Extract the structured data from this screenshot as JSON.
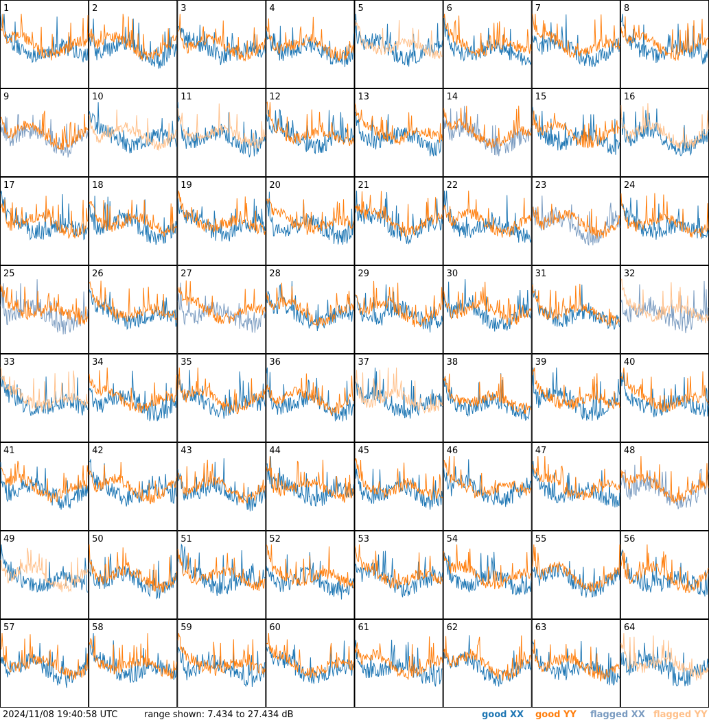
{
  "chart_data": {
    "type": "line",
    "panels": 64,
    "panel_labels": [
      "1",
      "2",
      "3",
      "4",
      "5",
      "6",
      "7",
      "8",
      "9",
      "10",
      "11",
      "12",
      "13",
      "14",
      "15",
      "16",
      "17",
      "18",
      "19",
      "20",
      "21",
      "22",
      "23",
      "24",
      "25",
      "26",
      "27",
      "28",
      "29",
      "30",
      "31",
      "32",
      "33",
      "34",
      "35",
      "36",
      "37",
      "38",
      "39",
      "40",
      "41",
      "42",
      "43",
      "44",
      "45",
      "46",
      "47",
      "48",
      "49",
      "50",
      "51",
      "52",
      "53",
      "54",
      "55",
      "56",
      "57",
      "58",
      "59",
      "60",
      "61",
      "62",
      "63",
      "64"
    ],
    "series": [
      {
        "name": "good XX",
        "color": "#1f77b4"
      },
      {
        "name": "good YY",
        "color": "#ff7f0e"
      },
      {
        "name": "flagged XX",
        "color": "#7a9bc0"
      },
      {
        "name": "flagged YY",
        "color": "#ffc08a"
      }
    ],
    "flagged_xx_panels": [
      9,
      14,
      23,
      25,
      27,
      32,
      48
    ],
    "flagged_yy_panels": [
      5,
      10,
      11,
      16,
      32,
      33,
      37,
      49,
      64
    ],
    "yrange_db": [
      7.434,
      27.434
    ]
  },
  "footer": {
    "timestamp": "2024/11/08 19:40:58 UTC",
    "range_text": "range shown: 7.434 to 27.434 dB",
    "legend_good": "good ",
    "legend_flagged": "flagged ",
    "xx": "XX",
    "yy": "YY"
  }
}
